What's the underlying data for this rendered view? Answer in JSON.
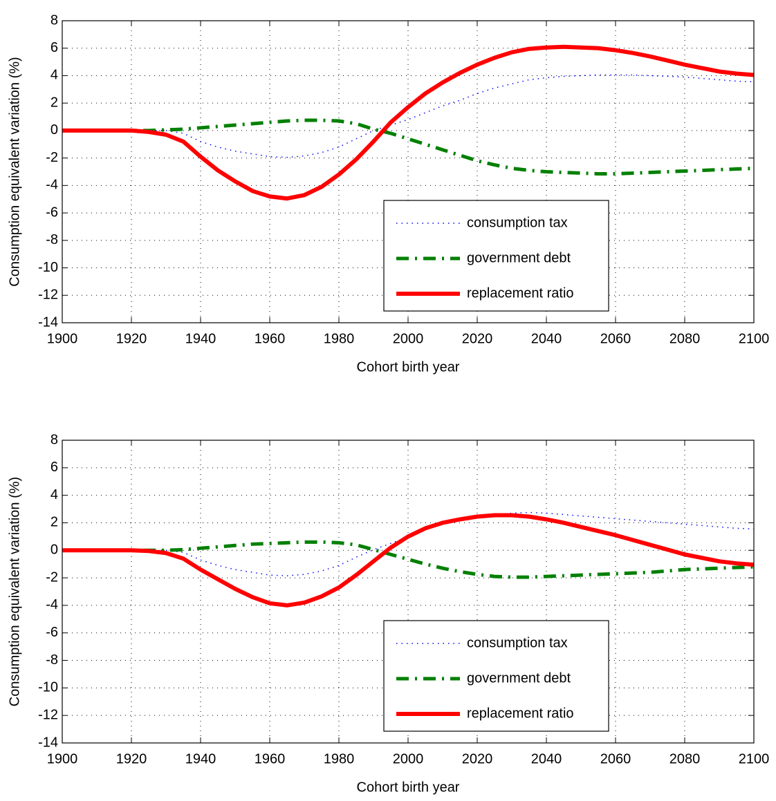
{
  "chart_data": [
    {
      "type": "line",
      "xlabel": "Cohort birth year",
      "ylabel": "Consumption equivalent variation (%)",
      "x": [
        1900,
        1905,
        1910,
        1915,
        1920,
        1925,
        1930,
        1935,
        1940,
        1945,
        1950,
        1955,
        1960,
        1965,
        1970,
        1975,
        1980,
        1985,
        1990,
        1995,
        2000,
        2005,
        2010,
        2015,
        2020,
        2025,
        2030,
        2035,
        2040,
        2045,
        2050,
        2055,
        2060,
        2065,
        2070,
        2075,
        2080,
        2085,
        2090,
        2095,
        2100
      ],
      "series": [
        {
          "name": "consumption tax",
          "color": "#0000ff",
          "linestyle": "dotted",
          "values": [
            0,
            0,
            0,
            0,
            0,
            0,
            0,
            -0.2,
            -0.8,
            -1.2,
            -1.5,
            -1.7,
            -1.9,
            -1.95,
            -1.85,
            -1.6,
            -1.2,
            -0.6,
            0,
            0.4,
            0.8,
            1.3,
            1.8,
            2.2,
            2.7,
            3.1,
            3.4,
            3.7,
            3.85,
            3.95,
            4.0,
            4.05,
            4.05,
            4.05,
            4.0,
            3.95,
            3.9,
            3.8,
            3.7,
            3.6,
            3.55
          ]
        },
        {
          "name": "government debt",
          "color": "#008000",
          "linestyle": "dashdot",
          "values": [
            0,
            0,
            0,
            0,
            0,
            0,
            0.05,
            0.1,
            0.2,
            0.3,
            0.4,
            0.5,
            0.6,
            0.7,
            0.75,
            0.75,
            0.7,
            0.5,
            0.1,
            -0.2,
            -0.6,
            -1.0,
            -1.4,
            -1.8,
            -2.2,
            -2.5,
            -2.75,
            -2.9,
            -3.0,
            -3.05,
            -3.1,
            -3.15,
            -3.15,
            -3.1,
            -3.05,
            -3.0,
            -2.95,
            -2.9,
            -2.85,
            -2.8,
            -2.75
          ]
        },
        {
          "name": "replacement ratio",
          "color": "#ff0000",
          "linestyle": "solid",
          "values": [
            0,
            0,
            0,
            0,
            0,
            -0.1,
            -0.3,
            -0.8,
            -1.9,
            -2.9,
            -3.7,
            -4.4,
            -4.8,
            -4.95,
            -4.7,
            -4.1,
            -3.2,
            -2.1,
            -0.8,
            0.6,
            1.7,
            2.7,
            3.5,
            4.2,
            4.8,
            5.3,
            5.7,
            5.95,
            6.05,
            6.1,
            6.05,
            6.0,
            5.85,
            5.65,
            5.4,
            5.1,
            4.8,
            4.55,
            4.3,
            4.15,
            4.05
          ]
        }
      ],
      "xlim": [
        1900,
        2100
      ],
      "xticks": [
        1900,
        1920,
        1940,
        1960,
        1980,
        2000,
        2020,
        2040,
        2060,
        2080,
        2100
      ],
      "ylim": [
        -14,
        8
      ],
      "yticks": [
        -14,
        -12,
        -10,
        -8,
        -6,
        -4,
        -2,
        0,
        2,
        4,
        6,
        8
      ],
      "grid": true,
      "legend": "lower right"
    },
    {
      "type": "line",
      "xlabel": "Cohort birth year",
      "ylabel": "Consumption equivalent variation (%)",
      "x": [
        1900,
        1905,
        1910,
        1915,
        1920,
        1925,
        1930,
        1935,
        1940,
        1945,
        1950,
        1955,
        1960,
        1965,
        1970,
        1975,
        1980,
        1985,
        1990,
        1995,
        2000,
        2005,
        2010,
        2015,
        2020,
        2025,
        2030,
        2035,
        2040,
        2045,
        2050,
        2055,
        2060,
        2065,
        2070,
        2075,
        2080,
        2085,
        2090,
        2095,
        2100
      ],
      "series": [
        {
          "name": "consumption tax",
          "color": "#0000ff",
          "linestyle": "dotted",
          "values": [
            0,
            0,
            0,
            0,
            0,
            0,
            0,
            -0.15,
            -0.7,
            -1.1,
            -1.4,
            -1.6,
            -1.8,
            -1.85,
            -1.75,
            -1.5,
            -1.1,
            -0.5,
            0.05,
            0.5,
            1.0,
            1.5,
            1.9,
            2.2,
            2.4,
            2.6,
            2.7,
            2.75,
            2.7,
            2.6,
            2.5,
            2.4,
            2.3,
            2.2,
            2.1,
            2.0,
            1.9,
            1.8,
            1.7,
            1.6,
            1.55
          ]
        },
        {
          "name": "government debt",
          "color": "#008000",
          "linestyle": "dashdot",
          "values": [
            0,
            0,
            0,
            0,
            0,
            0,
            0,
            0.05,
            0.15,
            0.25,
            0.35,
            0.45,
            0.5,
            0.55,
            0.6,
            0.6,
            0.55,
            0.4,
            0.05,
            -0.3,
            -0.65,
            -1.0,
            -1.3,
            -1.55,
            -1.75,
            -1.9,
            -1.95,
            -1.95,
            -1.9,
            -1.85,
            -1.8,
            -1.75,
            -1.7,
            -1.65,
            -1.6,
            -1.5,
            -1.4,
            -1.35,
            -1.3,
            -1.25,
            -1.2
          ]
        },
        {
          "name": "replacement ratio",
          "color": "#ff0000",
          "linestyle": "solid",
          "values": [
            0,
            0,
            0,
            0,
            0,
            -0.05,
            -0.2,
            -0.6,
            -1.4,
            -2.1,
            -2.8,
            -3.4,
            -3.85,
            -4.0,
            -3.8,
            -3.35,
            -2.7,
            -1.8,
            -0.8,
            0.2,
            1.0,
            1.6,
            2.0,
            2.25,
            2.45,
            2.55,
            2.55,
            2.45,
            2.25,
            2.0,
            1.7,
            1.4,
            1.1,
            0.75,
            0.4,
            0.05,
            -0.3,
            -0.55,
            -0.8,
            -0.95,
            -1.05
          ]
        }
      ],
      "xlim": [
        1900,
        2100
      ],
      "xticks": [
        1900,
        1920,
        1940,
        1960,
        1980,
        2000,
        2020,
        2040,
        2060,
        2080,
        2100
      ],
      "ylim": [
        -14,
        8
      ],
      "yticks": [
        -14,
        -12,
        -10,
        -8,
        -6,
        -4,
        -2,
        0,
        2,
        4,
        6,
        8
      ],
      "grid": true,
      "legend": "lower right"
    }
  ]
}
